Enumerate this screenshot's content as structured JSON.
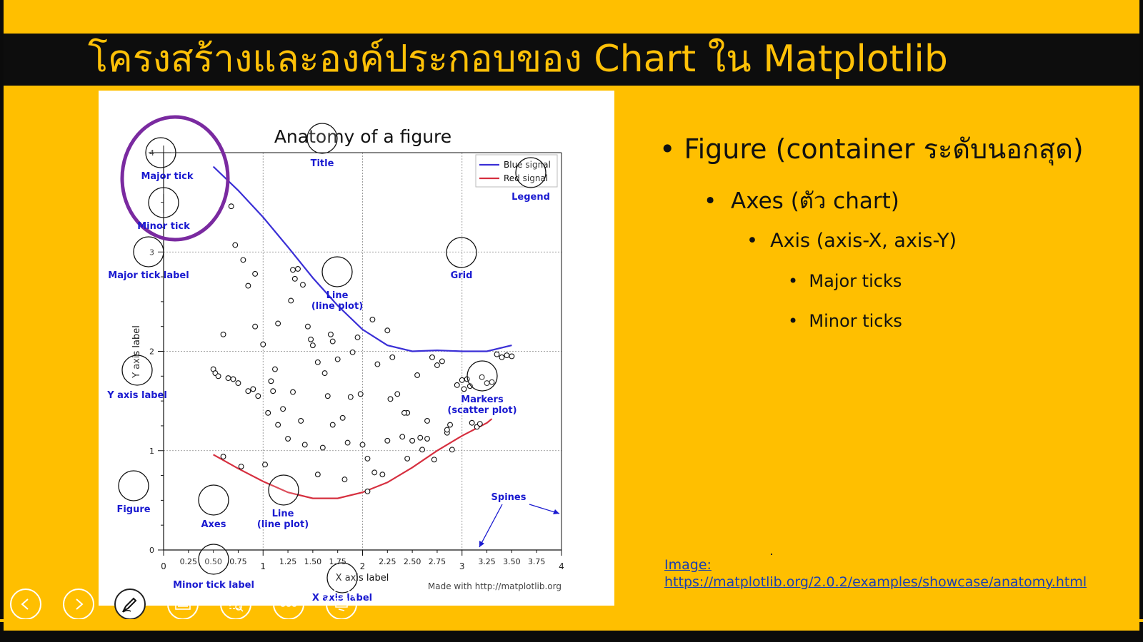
{
  "slide": {
    "title": "โครงสร้างและองค์ประกอบของ Chart ใน Matplotlib",
    "bullets": [
      {
        "text": "Figure (container ระดับนอกสุด)",
        "level": 1
      },
      {
        "text": "Axes (ตัว chart)",
        "level": 2
      },
      {
        "text": "Axis (axis-X, axis-Y)",
        "level": 3
      },
      {
        "text": "Major ticks",
        "level": 4
      },
      {
        "text": "Minor ticks",
        "level": 4
      }
    ],
    "caption": {
      "label": "Image:",
      "url": "https://matplotlib.org/2.0.2/examples/showcase/anatomy.html"
    }
  },
  "figure": {
    "title": "Anatomy of a figure",
    "xlabel": "X axis label",
    "ylabel": "Y axis label",
    "credit": "Made with http://matplotlib.org",
    "legend": [
      "Blue signal",
      "Red signal"
    ],
    "annotations": {
      "major_tick": "Major tick",
      "minor_tick": "Minor tick",
      "major_tick_label": "Major tick label",
      "minor_tick_label": "Minor tick label",
      "title": "Title",
      "legend": "Legend",
      "grid": "Grid",
      "line1": "Line",
      "line1b": "(line plot)",
      "line2": "Line",
      "line2b": "(line plot)",
      "markers": "Markers",
      "markersb": "(scatter plot)",
      "y_axis_label": "Y axis label",
      "x_axis_label": "X axis label",
      "figure": "Figure",
      "axes": "Axes",
      "spines": "Spines"
    },
    "colors": {
      "blue": "#3a2fd6",
      "red": "#d62f3f",
      "annot": "#1a1ad0",
      "highlight": "#7a2aa0"
    }
  },
  "chart_data": {
    "type": "line",
    "title": "Anatomy of a figure",
    "xlabel": "X axis label",
    "ylabel": "Y axis label",
    "xlim": [
      0,
      4
    ],
    "ylim": [
      0,
      4
    ],
    "xticks_major": [
      "0",
      "1",
      "2",
      "3",
      "4"
    ],
    "xticks_minor": [
      "0.25",
      "0.50",
      "0.75",
      "1.25",
      "1.50",
      "1.75",
      "2.25",
      "2.50",
      "2.75",
      "3.25",
      "3.50",
      "3.75"
    ],
    "yticks_major": [
      "0",
      "1",
      "2",
      "3",
      "4"
    ],
    "grid": true,
    "legend_position": "top-right",
    "series": [
      {
        "name": "Blue signal",
        "type": "line",
        "x": [
          0.5,
          0.75,
          1.0,
          1.25,
          1.5,
          1.75,
          2.0,
          2.25,
          2.5,
          2.75,
          3.0,
          3.25,
          3.5
        ],
        "y": [
          3.86,
          3.62,
          3.35,
          3.05,
          2.74,
          2.46,
          2.22,
          2.06,
          2.0,
          2.01,
          2.0,
          2.0,
          2.06
        ]
      },
      {
        "name": "Red signal",
        "type": "line",
        "x": [
          0.5,
          0.75,
          1.0,
          1.25,
          1.5,
          1.75,
          2.0,
          2.25,
          2.5,
          2.75,
          3.0,
          3.25,
          3.3
        ],
        "y": [
          0.96,
          0.82,
          0.69,
          0.58,
          0.52,
          0.52,
          0.58,
          0.68,
          0.83,
          1.0,
          1.15,
          1.28,
          1.32
        ]
      },
      {
        "name": "",
        "type": "scatter",
        "x": [
          0.5,
          0.52,
          0.55,
          0.6,
          0.65,
          0.7,
          0.72,
          0.75,
          0.8,
          0.85,
          0.9,
          0.92,
          0.95,
          1.0,
          1.05,
          1.08,
          1.1,
          1.15,
          1.2,
          1.25,
          1.28,
          1.3,
          1.35,
          1.38,
          1.4,
          1.45,
          1.5,
          1.55,
          1.6,
          1.62,
          1.65,
          1.7,
          1.75,
          1.8,
          1.85,
          1.9,
          1.95,
          2.0,
          2.05,
          2.1,
          2.15,
          2.2,
          2.25,
          2.3,
          2.35,
          2.4,
          2.45,
          2.5,
          2.55,
          2.6,
          2.65,
          2.7,
          2.75,
          2.8,
          2.85,
          2.9,
          2.95,
          3.0,
          3.05,
          3.1,
          3.15,
          3.2,
          3.25,
          3.3,
          3.35,
          3.4,
          3.45,
          3.5,
          0.6,
          0.78,
          0.85,
          1.02,
          1.15,
          1.3,
          1.42,
          1.55,
          1.7,
          1.82,
          1.98,
          2.12,
          2.28,
          2.42,
          2.58,
          2.72,
          2.88,
          3.02,
          3.18,
          0.68,
          0.92,
          1.12,
          1.32,
          1.48,
          1.68,
          1.88,
          2.05,
          2.25,
          2.45,
          2.65,
          2.85,
          3.08
        ],
        "y": [
          1.82,
          1.78,
          1.75,
          2.17,
          1.73,
          1.72,
          3.07,
          1.68,
          2.92,
          2.66,
          1.62,
          2.25,
          1.55,
          2.07,
          1.38,
          1.7,
          1.6,
          2.28,
          1.42,
          1.12,
          2.51,
          2.82,
          2.83,
          1.3,
          2.67,
          2.25,
          2.06,
          1.89,
          1.03,
          1.78,
          1.55,
          2.1,
          1.92,
          1.33,
          1.08,
          1.99,
          2.14,
          1.06,
          0.92,
          2.32,
          1.87,
          0.76,
          2.21,
          1.94,
          1.57,
          1.14,
          1.38,
          1.1,
          1.76,
          1.01,
          1.12,
          1.94,
          1.86,
          1.9,
          1.18,
          1.01,
          1.66,
          1.71,
          1.72,
          1.28,
          1.24,
          1.74,
          1.68,
          1.69,
          1.97,
          1.94,
          1.96,
          1.95,
          0.94,
          0.84,
          1.6,
          0.86,
          1.26,
          1.59,
          1.06,
          0.76,
          1.26,
          0.71,
          1.57,
          0.78,
          1.52,
          1.38,
          1.13,
          0.91,
          1.26,
          1.62,
          1.27,
          3.46,
          2.78,
          1.82,
          2.73,
          2.12,
          2.17,
          1.54,
          0.59,
          1.1,
          0.92,
          1.3,
          1.21,
          1.65
        ]
      }
    ]
  }
}
